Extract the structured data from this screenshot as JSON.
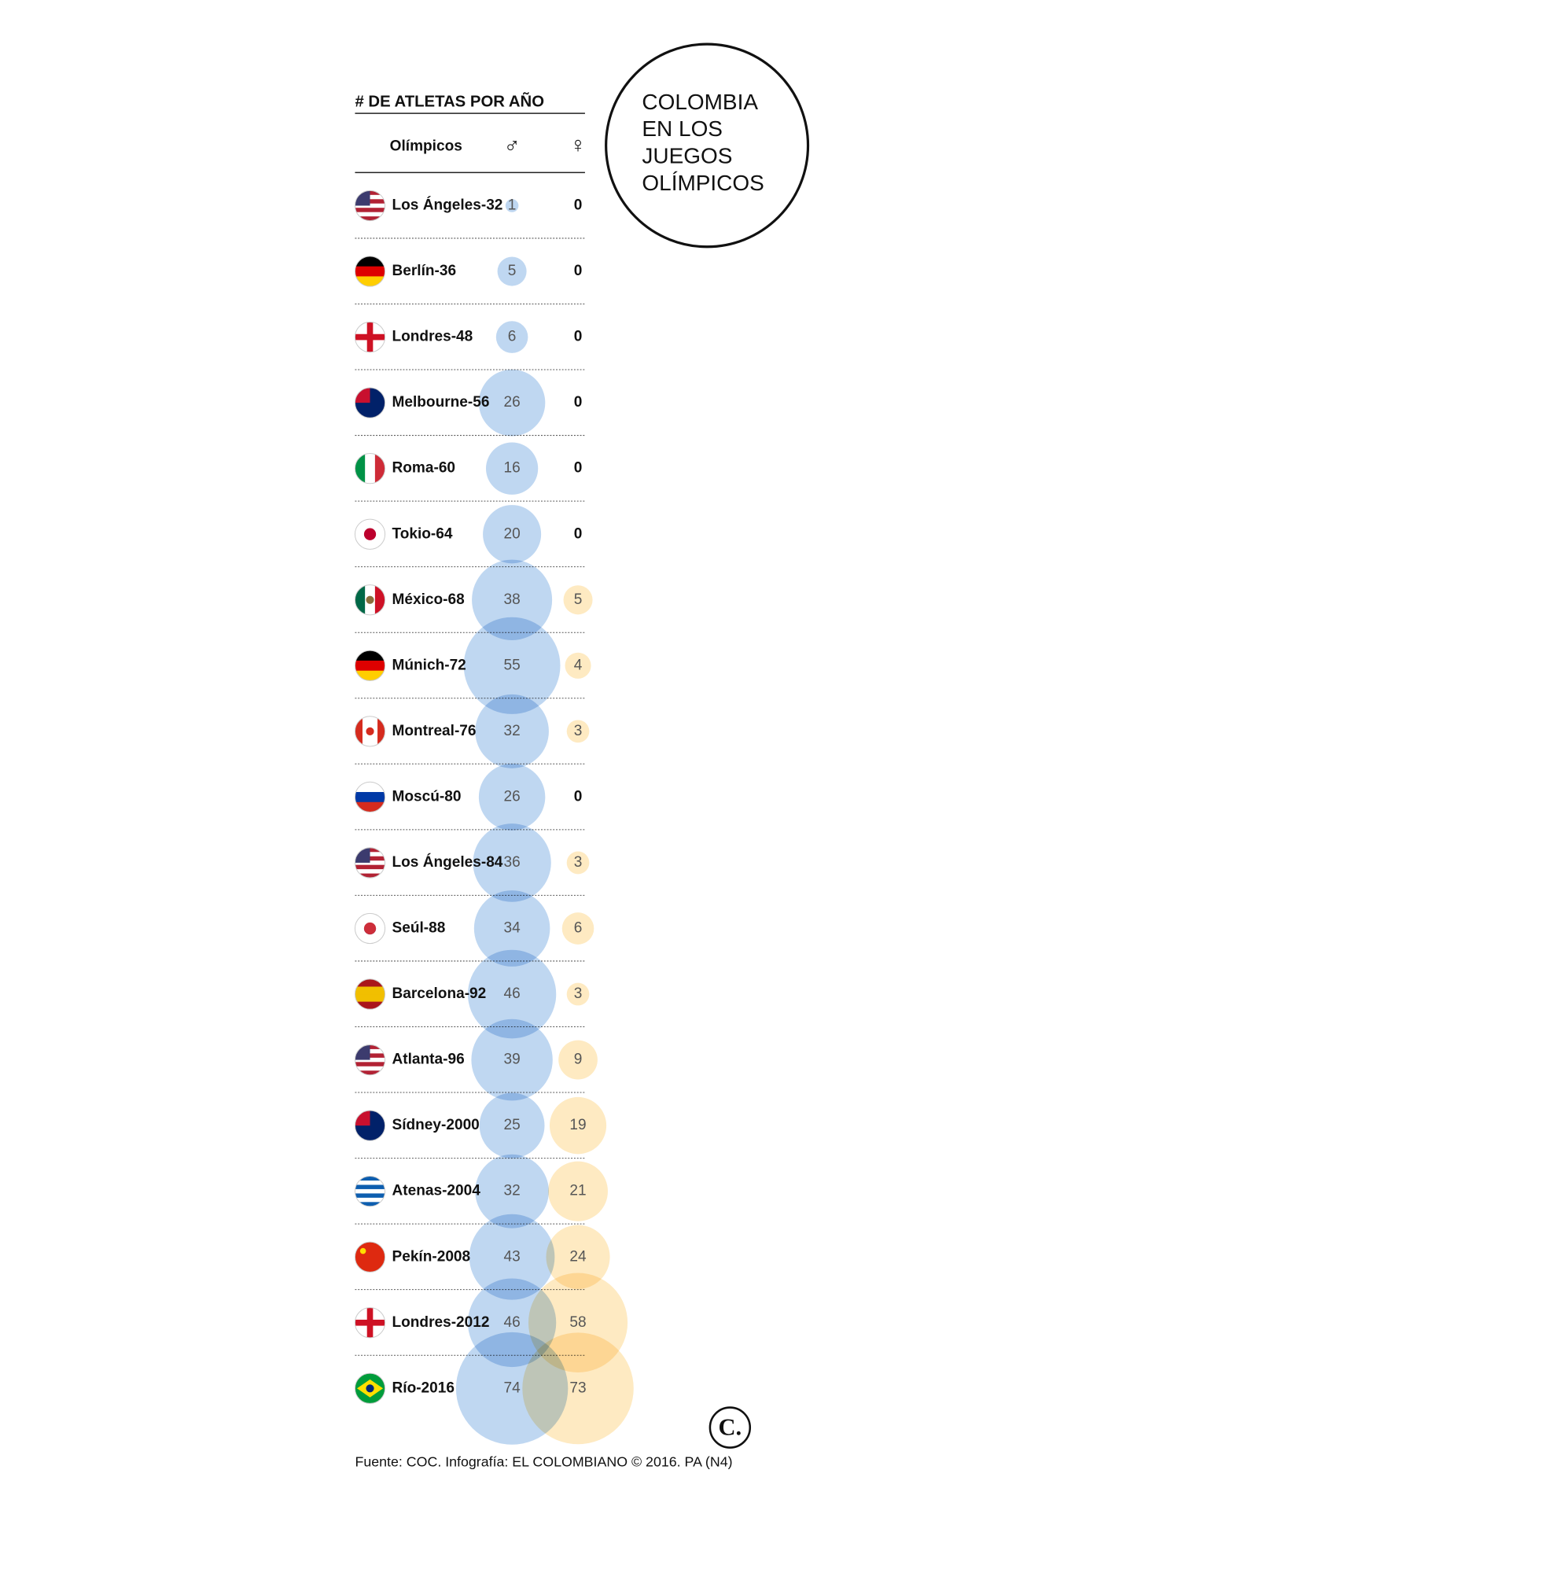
{
  "chart_data": {
    "type": "bubble-table",
    "title": "# DE ATLETAS POR AÑO",
    "headline": [
      "COLOMBIA",
      "EN LOS",
      "JUEGOS",
      "OLÍMPICOS"
    ],
    "column_header": "Olímpicos",
    "categories": [
      "Los Ángeles-32",
      "Berlín-36",
      "Londres-48",
      "Melbourne-56",
      "Roma-60",
      "Tokio-64",
      "México-68",
      "Múnich-72",
      "Montreal-76",
      "Moscú-80",
      "Los Ángeles-84",
      "Seúl-88",
      "Barcelona-92",
      "Atlanta-96",
      "Sídney-2000",
      "Atenas-2004",
      "Pekín-2008",
      "Londres-2012",
      "Río-2016"
    ],
    "series": [
      {
        "name": "♂",
        "color": "#a9c9ec",
        "values": [
          1,
          5,
          6,
          26,
          16,
          20,
          38,
          55,
          32,
          26,
          36,
          34,
          46,
          39,
          25,
          32,
          43,
          46,
          74
        ]
      },
      {
        "name": "♀",
        "color": "#fde3ad",
        "values": [
          0,
          0,
          0,
          0,
          0,
          0,
          5,
          4,
          3,
          0,
          3,
          6,
          3,
          9,
          19,
          21,
          24,
          58,
          73
        ]
      }
    ],
    "source": "Fuente: COC. Infografía: EL COLOMBIANO © 2016. PA (N4)",
    "logo": "C."
  }
}
